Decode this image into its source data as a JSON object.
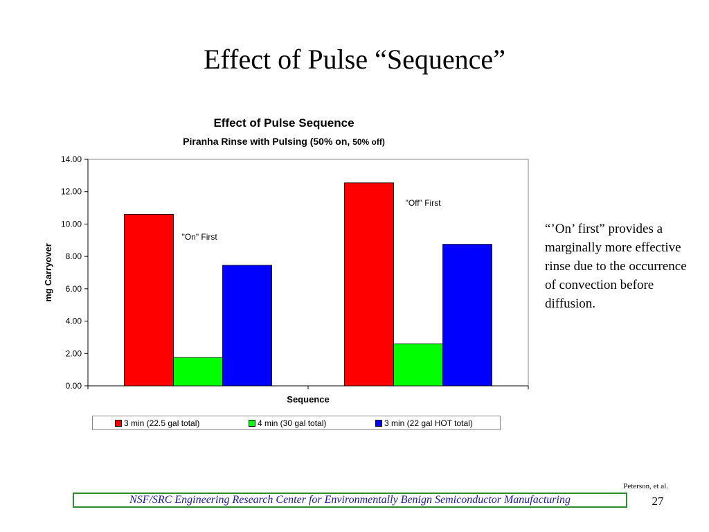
{
  "slide": {
    "title": "Effect of Pulse “Sequence”",
    "note": "“’On’ first” provides a marginally more effective rinse due to the occurrence of convection before diffusion.",
    "credit": "Peterson, et al.",
    "footer": "NSF/SRC Engineering Research Center for Environmentally Benign Semiconductor Manufacturing",
    "page_number": "27"
  },
  "chart_data": {
    "type": "bar",
    "title": "Effect of Pulse Sequence",
    "subtitle_main": "Piranha Rinse with Pulsing (50% on, ",
    "subtitle_small": "50% off)",
    "xlabel": "Sequence",
    "ylabel": "mg Carryover",
    "ylim": [
      0,
      14
    ],
    "yticks": [
      "0.00",
      "2.00",
      "4.00",
      "6.00",
      "8.00",
      "10.00",
      "12.00",
      "14.00"
    ],
    "grid": false,
    "legend_position": "bottom",
    "categories": [
      "\"On\" First",
      "\"Off\" First"
    ],
    "series": [
      {
        "name": "3 min (22.5 gal total)",
        "color": "#ff0000",
        "values": [
          10.6,
          12.55
        ]
      },
      {
        "name": "4 min (30 gal total)",
        "color": "#00ff00",
        "values": [
          1.75,
          2.6
        ]
      },
      {
        "name": "3 min (22 gal HOT total)",
        "color": "#0000ff",
        "values": [
          7.45,
          8.75
        ]
      }
    ]
  }
}
